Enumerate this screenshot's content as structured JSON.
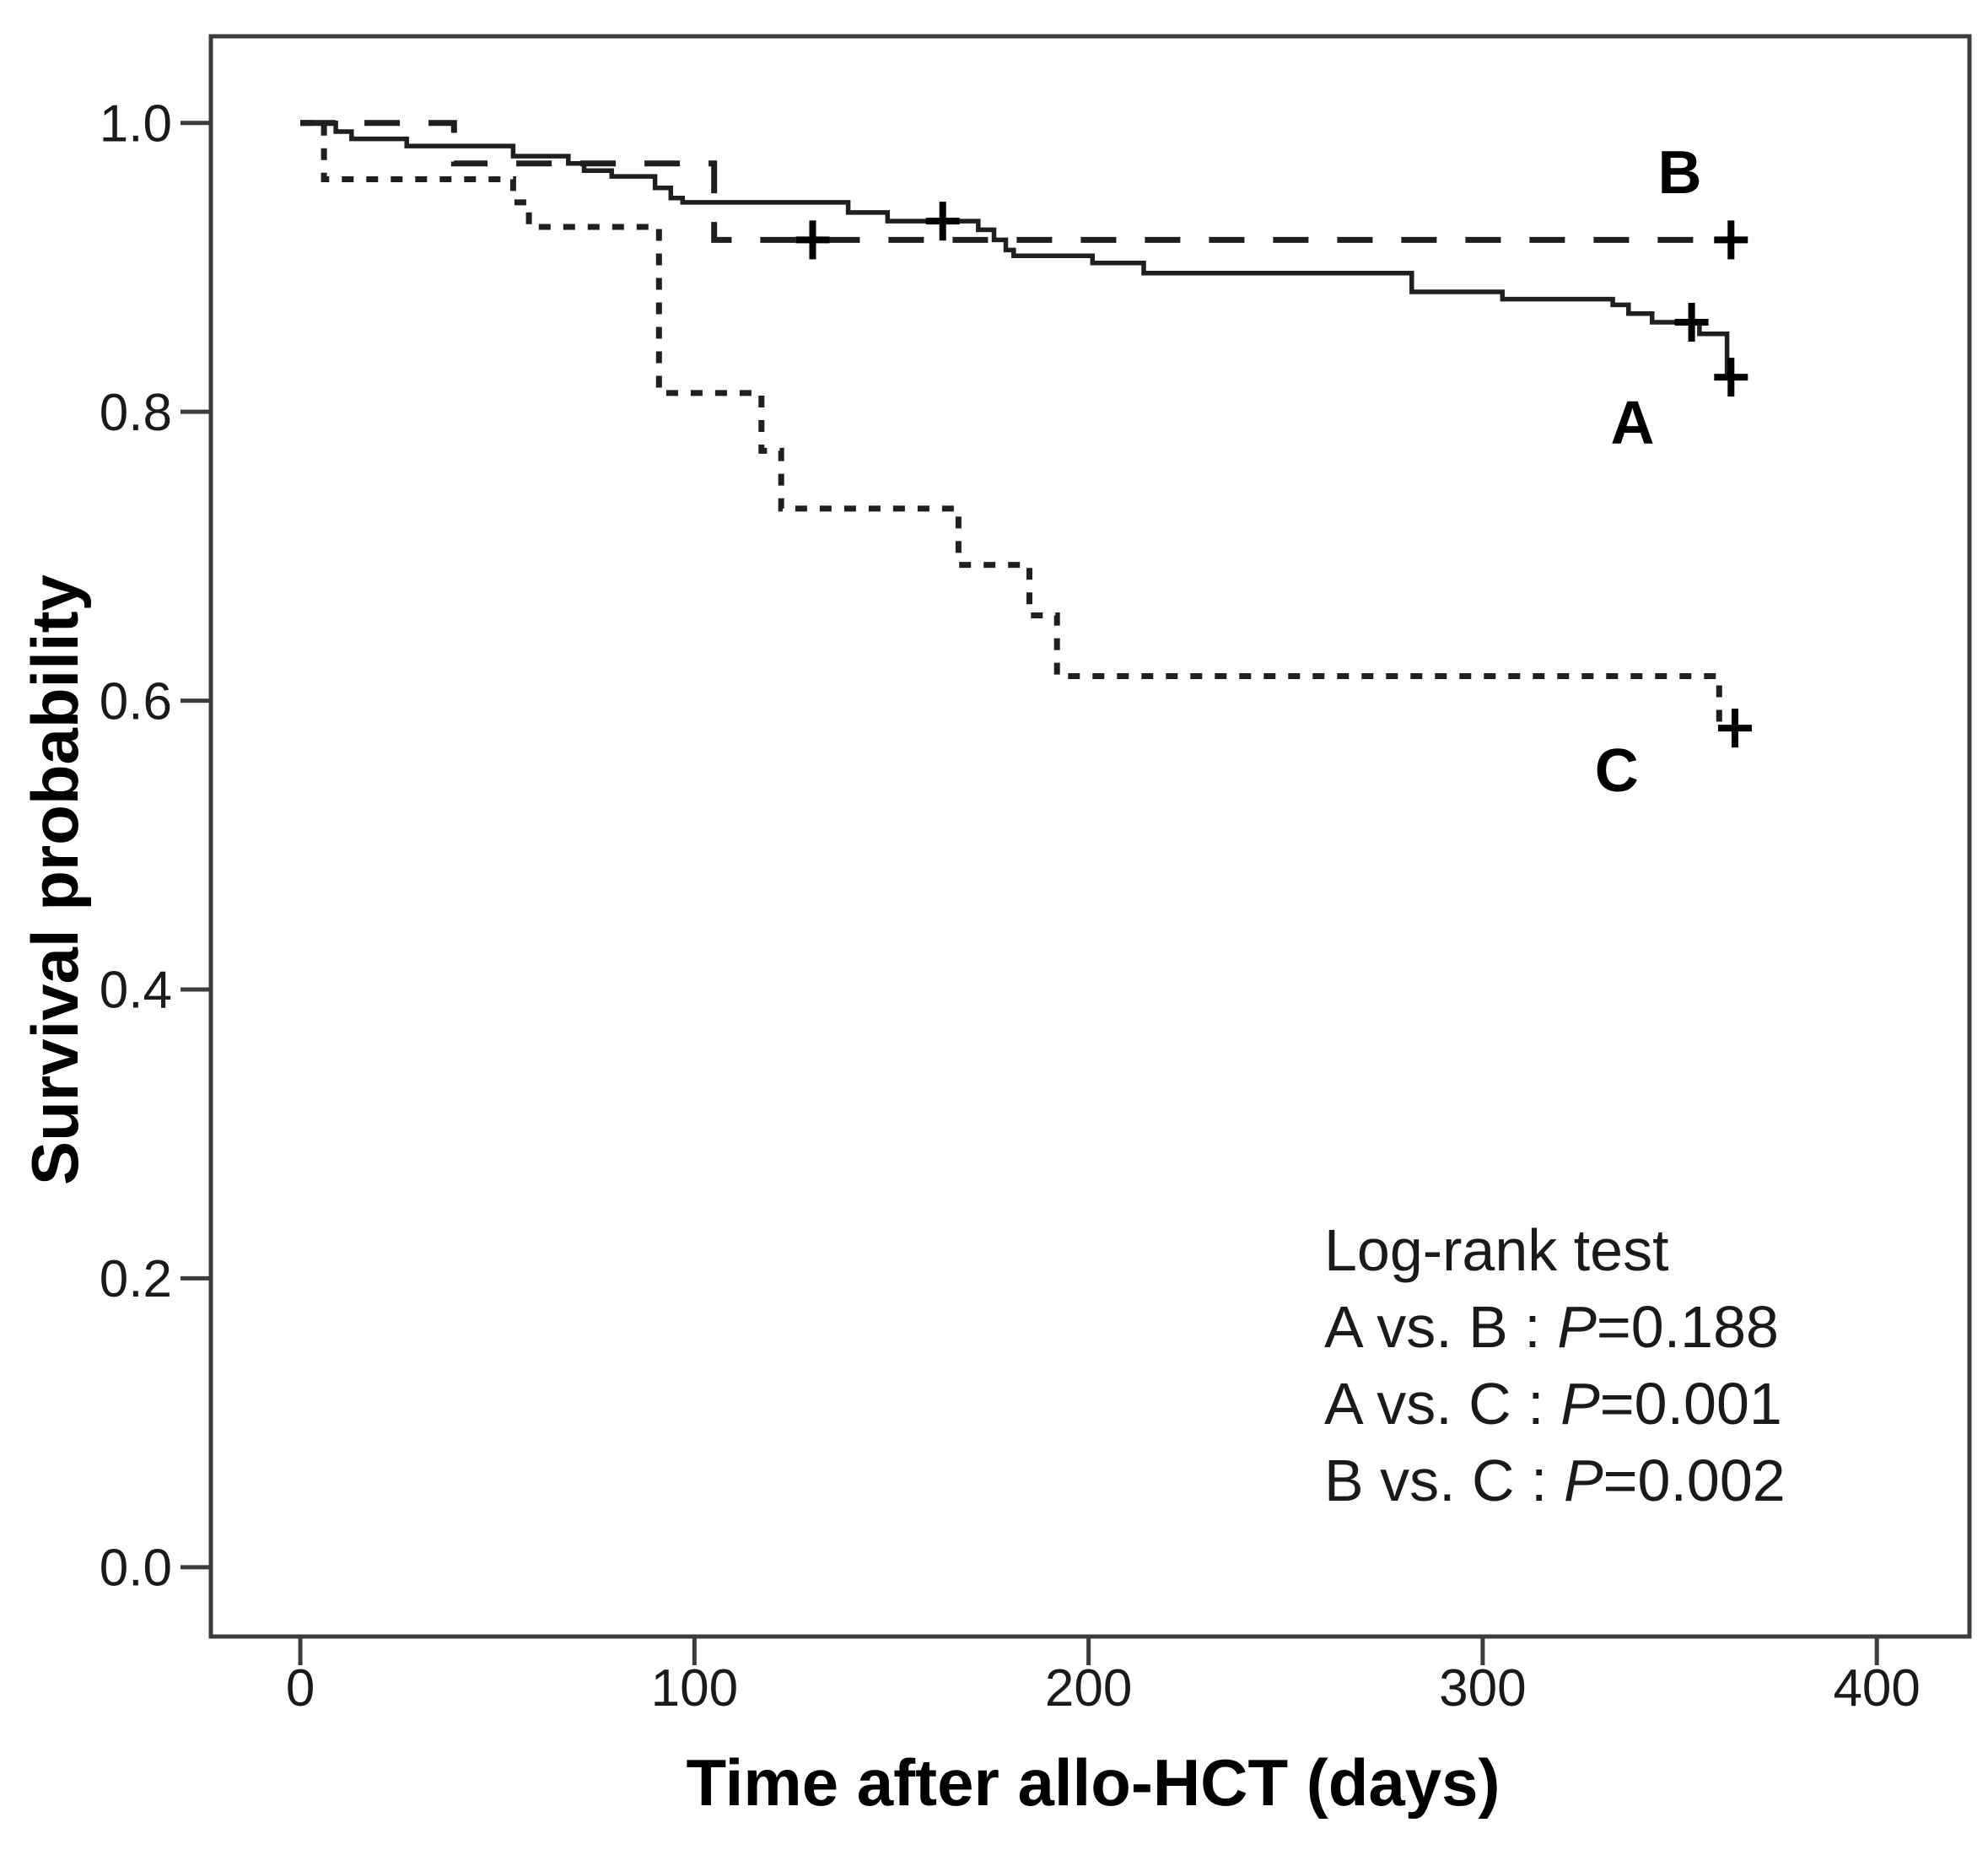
{
  "figure": {
    "background": "#ffffff"
  },
  "chart_data": {
    "type": "line",
    "chart_kind": "kaplan_meier_step_survival",
    "title": "",
    "xlabel": "Time after allo-HCT (days)",
    "ylabel": "Survival probability",
    "xlim": [
      -22.7,
      423.5
    ],
    "ylim": [
      -0.048,
      1.06
    ],
    "grid": false,
    "legend_position": "lower-right-inside",
    "colors": {
      "line": "#1f1f1f",
      "frame": "#3c3c3c",
      "background": "#ffffff",
      "text": "#000000"
    },
    "x_ticks": {
      "values": [
        0,
        100,
        200,
        300,
        400
      ],
      "labels": [
        "0",
        "100",
        "200",
        "300",
        "400"
      ]
    },
    "y_ticks": {
      "values": [
        0.0,
        0.2,
        0.4,
        0.6,
        0.8,
        1.0
      ],
      "labels": [
        "0.0",
        "0.2",
        "0.4",
        "0.6",
        "0.8",
        "1.0"
      ]
    },
    "series": [
      {
        "name": "C",
        "style": "dashed-short",
        "stroke_width": 7,
        "dash": [
          14,
          15
        ],
        "steps": [
          [
            0,
            1.0
          ],
          [
            6,
            0.961
          ],
          [
            54,
            0.945
          ],
          [
            58,
            0.928
          ],
          [
            91,
            0.813
          ],
          [
            117,
            0.773
          ],
          [
            122,
            0.733
          ],
          [
            167,
            0.694
          ],
          [
            185,
            0.659
          ],
          [
            192,
            0.617
          ],
          [
            360,
            0.581
          ]
        ],
        "end_day": 362,
        "censors": [
          [
            364,
            0.581
          ]
        ],
        "label": {
          "text": "C",
          "day": 334,
          "prob": 0.552
        }
      },
      {
        "name": "B",
        "style": "dashed-long",
        "stroke_width": 7,
        "dash": [
          42,
          34
        ],
        "steps": [
          [
            0,
            1.0
          ],
          [
            39,
            0.972
          ],
          [
            105,
            0.919
          ]
        ],
        "end_day": 359,
        "censors": [
          [
            130,
            0.919
          ],
          [
            363,
            0.919
          ]
        ],
        "label": {
          "text": "B",
          "day": 350,
          "prob": 0.966
        }
      },
      {
        "name": "A",
        "style": "solid",
        "stroke_width": 5.5,
        "dash": null,
        "steps": [
          [
            0,
            1.0
          ],
          [
            9,
            0.994
          ],
          [
            13,
            0.989
          ],
          [
            27,
            0.984
          ],
          [
            54,
            0.977
          ],
          [
            68,
            0.972
          ],
          [
            72,
            0.967
          ],
          [
            79,
            0.963
          ],
          [
            90,
            0.955
          ],
          [
            94,
            0.948
          ],
          [
            97,
            0.945
          ],
          [
            139,
            0.938
          ],
          [
            149,
            0.932
          ],
          [
            172,
            0.926
          ],
          [
            176,
            0.919
          ],
          [
            179,
            0.912
          ],
          [
            181,
            0.908
          ],
          [
            201,
            0.903
          ],
          [
            214,
            0.896
          ],
          [
            282,
            0.883
          ],
          [
            305,
            0.878
          ],
          [
            333,
            0.874
          ],
          [
            337,
            0.868
          ],
          [
            343,
            0.862
          ],
          [
            355,
            0.854
          ],
          [
            362,
            0.824
          ]
        ],
        "end_day": 364,
        "censors": [
          [
            163,
            0.932
          ],
          [
            353,
            0.862
          ],
          [
            363,
            0.824
          ]
        ],
        "label": {
          "text": "A",
          "day": 338,
          "prob": 0.793
        }
      }
    ]
  },
  "legend": {
    "lines": [
      {
        "pre": "Log-rank test",
        "italic": "",
        "post": ""
      },
      {
        "pre": "A vs. B : ",
        "italic": "P",
        "post": "=0.188"
      },
      {
        "pre": "A vs. C : ",
        "italic": "P",
        "post": "=0.001"
      },
      {
        "pre": "B vs. C : ",
        "italic": "P",
        "post": "=0.002"
      }
    ]
  }
}
